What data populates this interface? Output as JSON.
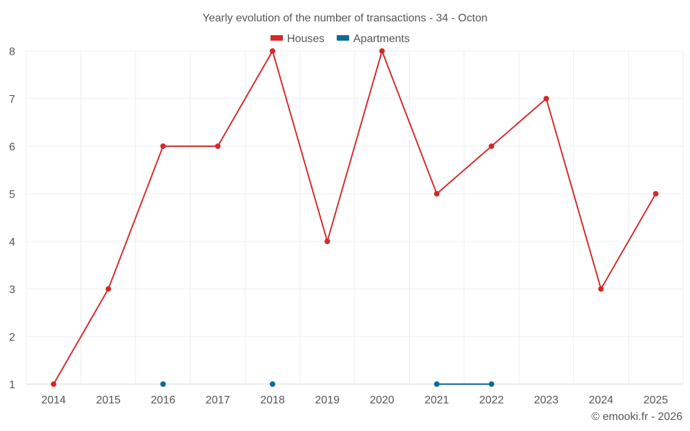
{
  "chart_data": {
    "type": "line",
    "title": "Yearly evolution of the number of transactions - 34 - Octon",
    "xlabel": "",
    "ylabel": "",
    "categories": [
      "2014",
      "2015",
      "2016",
      "2017",
      "2018",
      "2019",
      "2020",
      "2021",
      "2022",
      "2023",
      "2024",
      "2025"
    ],
    "ylim": [
      1,
      8
    ],
    "yticks": [
      "1",
      "2",
      "3",
      "4",
      "5",
      "6",
      "7",
      "8"
    ],
    "grid": true,
    "legend_position": "top-center",
    "series": [
      {
        "name": "Houses",
        "color": "#d32a2a",
        "values": [
          1,
          3,
          6,
          6,
          8,
          4,
          8,
          5,
          6,
          7,
          3,
          5
        ]
      },
      {
        "name": "Apartments",
        "color": "#0e6a9a",
        "values": [
          null,
          null,
          1,
          null,
          1,
          null,
          null,
          1,
          1,
          null,
          null,
          null
        ]
      }
    ]
  },
  "footer": {
    "credit": "© emooki.fr - 2026"
  }
}
